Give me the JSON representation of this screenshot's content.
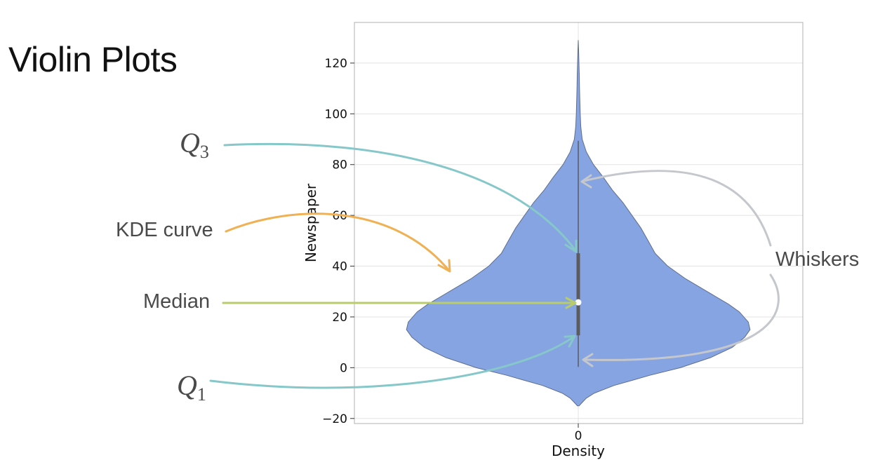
{
  "slide": {
    "title": "Violin Plots",
    "annotations": {
      "q3": {
        "letter": "Q",
        "sub": "3"
      },
      "q1": {
        "letter": "Q",
        "sub": "1"
      },
      "kde": "KDE curve",
      "median": "Median",
      "whiskers": "Whiskers"
    }
  },
  "colors": {
    "violin_fill": "#86a3e2",
    "violin_edge": "#5f6f8c",
    "q_arrows": "#86c8c9",
    "kde_arrow": "#efb154",
    "median_arrow": "#b9cc6c",
    "whisker_arrows": "#c4c7cc",
    "box": "#5c5c5c",
    "median_dot": "#ffffff"
  },
  "chart_data": {
    "type": "violin",
    "title": "",
    "xlabel": "Density",
    "ylabel": "Newspaper",
    "x_ticks": [
      "0"
    ],
    "y_ticks": [
      -20,
      0,
      20,
      40,
      60,
      80,
      100,
      120
    ],
    "ylim": [
      -22,
      136
    ],
    "grid": true,
    "series": [
      {
        "name": "Newspaper",
        "category": "0",
        "whisker_low": 0.3,
        "q1": 12.75,
        "median": 25.75,
        "q3": 45.1,
        "whisker_high": 89.4,
        "kde_range": [
          -15,
          129
        ],
        "density_profile": [
          [
            -15,
            0.005
          ],
          [
            -14,
            0.018
          ],
          [
            -12,
            0.045
          ],
          [
            -10,
            0.09
          ],
          [
            -7,
            0.2
          ],
          [
            -5,
            0.3
          ],
          [
            -3,
            0.4
          ],
          [
            0,
            0.57
          ],
          [
            4,
            0.74
          ],
          [
            8,
            0.86
          ],
          [
            12,
            0.93
          ],
          [
            15,
            0.96
          ],
          [
            18,
            0.95
          ],
          [
            22,
            0.9
          ],
          [
            25,
            0.84
          ],
          [
            30,
            0.72
          ],
          [
            35,
            0.6
          ],
          [
            40,
            0.5
          ],
          [
            45,
            0.43
          ],
          [
            50,
            0.39
          ],
          [
            55,
            0.35
          ],
          [
            60,
            0.3
          ],
          [
            65,
            0.25
          ],
          [
            70,
            0.19
          ],
          [
            75,
            0.14
          ],
          [
            80,
            0.085
          ],
          [
            85,
            0.045
          ],
          [
            90,
            0.022
          ],
          [
            95,
            0.014
          ],
          [
            100,
            0.011
          ],
          [
            105,
            0.009
          ],
          [
            110,
            0.007
          ],
          [
            115,
            0.006
          ],
          [
            120,
            0.004
          ],
          [
            125,
            0.002
          ],
          [
            129,
            0.0
          ]
        ]
      }
    ]
  }
}
